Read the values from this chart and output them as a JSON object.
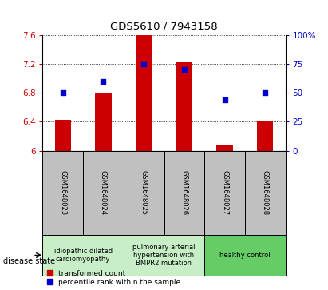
{
  "title": "GDS5610 / 7943158",
  "samples": [
    "GSM1648023",
    "GSM1648024",
    "GSM1648025",
    "GSM1648026",
    "GSM1648027",
    "GSM1648028"
  ],
  "transformed_count": [
    6.43,
    6.8,
    7.6,
    7.23,
    6.08,
    6.42
  ],
  "percentile_rank": [
    50,
    60,
    75,
    70,
    44,
    50
  ],
  "ylim_left": [
    6.0,
    7.6
  ],
  "ylim_right": [
    0,
    100
  ],
  "bar_color": "#cc0000",
  "dot_color": "#0000cc",
  "bar_width": 0.4,
  "sample_bg_color": "#c0c0c0",
  "group_configs": [
    {
      "indices": [
        0,
        1
      ],
      "label": "idiopathic dilated\ncardiomyopathy",
      "color": "#c8eec8"
    },
    {
      "indices": [
        2,
        3
      ],
      "label": "pulmonary arterial\nhypertension with\nBMPR2 mutation",
      "color": "#c8eec8"
    },
    {
      "indices": [
        4,
        5
      ],
      "label": "healthy control",
      "color": "#66cc66"
    }
  ],
  "legend_red": "transformed count",
  "legend_blue": "percentile rank within the sample",
  "disease_state_label": "disease state",
  "yticks_left": [
    6.0,
    6.4,
    6.8,
    7.2,
    7.6
  ],
  "ytick_labels_left": [
    "6",
    "6.4",
    "6.8",
    "7.2",
    "7.6"
  ],
  "yticks_right": [
    0,
    25,
    50,
    75,
    100
  ],
  "ytick_labels_right": [
    "0",
    "25",
    "50",
    "75",
    "100%"
  ]
}
